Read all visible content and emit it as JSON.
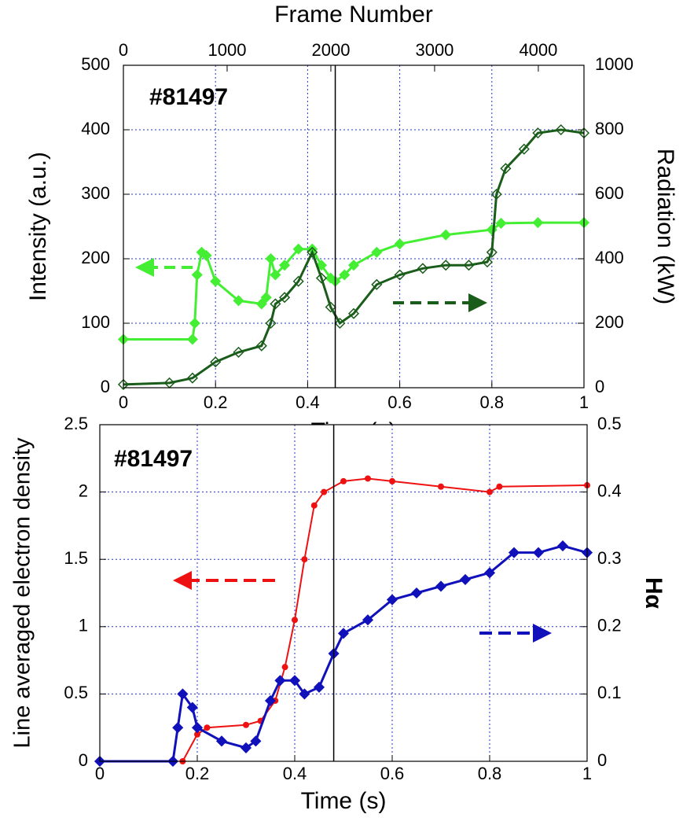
{
  "chart_data": [
    {
      "type": "line",
      "x_label": "Time (s)",
      "x2_label": "Frame Number",
      "y_label": "Intensity (a.u.)",
      "y2_label": "Radiation (kW)",
      "annotation": "#81497",
      "xlim": [
        0,
        1
      ],
      "xticks": [
        0,
        0.2,
        0.4,
        0.6,
        0.8,
        1
      ],
      "x2lim": [
        0,
        4440
      ],
      "x2ticks": [
        0,
        1000,
        2000,
        3000,
        4000
      ],
      "ylim": [
        0,
        500
      ],
      "yticks": [
        0,
        100,
        200,
        300,
        400,
        500
      ],
      "y2lim": [
        0,
        1000
      ],
      "y2ticks": [
        0,
        200,
        400,
        600,
        800,
        1000
      ],
      "vline_x": 0.46,
      "grid": true,
      "series": [
        {
          "color": "#44ee33",
          "marker": "filled-diamond",
          "axis": "y",
          "x": [
            0,
            0.15,
            0.155,
            0.16,
            0.17,
            0.18,
            0.2,
            0.25,
            0.3,
            0.31,
            0.32,
            0.33,
            0.35,
            0.38,
            0.41,
            0.43,
            0.45,
            0.46,
            0.48,
            0.5,
            0.55,
            0.6,
            0.7,
            0.8,
            0.82,
            0.9,
            1
          ],
          "values": [
            75,
            75,
            100,
            175,
            210,
            205,
            165,
            135,
            130,
            140,
            200,
            175,
            190,
            215,
            215,
            190,
            170,
            165,
            175,
            190,
            210,
            223,
            237,
            245,
            255,
            256,
            256
          ]
        },
        {
          "color": "#1a5c1a",
          "marker": "open-diamond",
          "axis": "y2",
          "x": [
            0,
            0.1,
            0.15,
            0.2,
            0.25,
            0.3,
            0.32,
            0.33,
            0.35,
            0.38,
            0.41,
            0.43,
            0.45,
            0.47,
            0.5,
            0.55,
            0.6,
            0.65,
            0.7,
            0.75,
            0.79,
            0.8,
            0.81,
            0.83,
            0.87,
            0.9,
            0.95,
            1
          ],
          "values": [
            10,
            15,
            30,
            80,
            110,
            130,
            200,
            260,
            280,
            330,
            420,
            340,
            250,
            200,
            230,
            320,
            350,
            370,
            380,
            380,
            390,
            420,
            600,
            680,
            740,
            790,
            800,
            790
          ]
        }
      ]
    },
    {
      "type": "line",
      "x_label": "Time (s)",
      "y_label": "Line averaged electron density",
      "y2_label": "Hα",
      "annotation": "#81497",
      "xlim": [
        0,
        1
      ],
      "xticks": [
        0,
        0.2,
        0.4,
        0.6,
        0.8,
        1
      ],
      "ylim": [
        0,
        2.5
      ],
      "yticks": [
        0,
        0.5,
        1,
        1.5,
        2,
        2.5
      ],
      "y2lim": [
        0,
        0.5
      ],
      "y2ticks": [
        0,
        0.1,
        0.2,
        0.3,
        0.4,
        0.5
      ],
      "vline_x": 0.48,
      "grid": true,
      "series": [
        {
          "color": "#ee1111",
          "marker": "dot",
          "axis": "y",
          "x": [
            0.17,
            0.2,
            0.22,
            0.3,
            0.33,
            0.36,
            0.38,
            0.4,
            0.42,
            0.44,
            0.46,
            0.5,
            0.55,
            0.6,
            0.7,
            0.8,
            0.82,
            1
          ],
          "values": [
            0,
            0.2,
            0.25,
            0.27,
            0.3,
            0.45,
            0.7,
            1.05,
            1.5,
            1.9,
            2.0,
            2.08,
            2.1,
            2.08,
            2.04,
            2.0,
            2.04,
            2.05
          ]
        },
        {
          "color": "#1111bb",
          "marker": "filled-diamond",
          "axis": "y2",
          "x": [
            0,
            0.15,
            0.16,
            0.17,
            0.19,
            0.2,
            0.25,
            0.3,
            0.32,
            0.35,
            0.37,
            0.4,
            0.42,
            0.45,
            0.48,
            0.5,
            0.55,
            0.6,
            0.65,
            0.7,
            0.75,
            0.8,
            0.85,
            0.9,
            0.95,
            1
          ],
          "values": [
            0,
            0,
            0.05,
            0.1,
            0.08,
            0.05,
            0.03,
            0.02,
            0.03,
            0.09,
            0.12,
            0.12,
            0.1,
            0.11,
            0.16,
            0.19,
            0.21,
            0.24,
            0.25,
            0.26,
            0.27,
            0.28,
            0.31,
            0.31,
            0.32,
            0.31
          ]
        }
      ]
    }
  ]
}
